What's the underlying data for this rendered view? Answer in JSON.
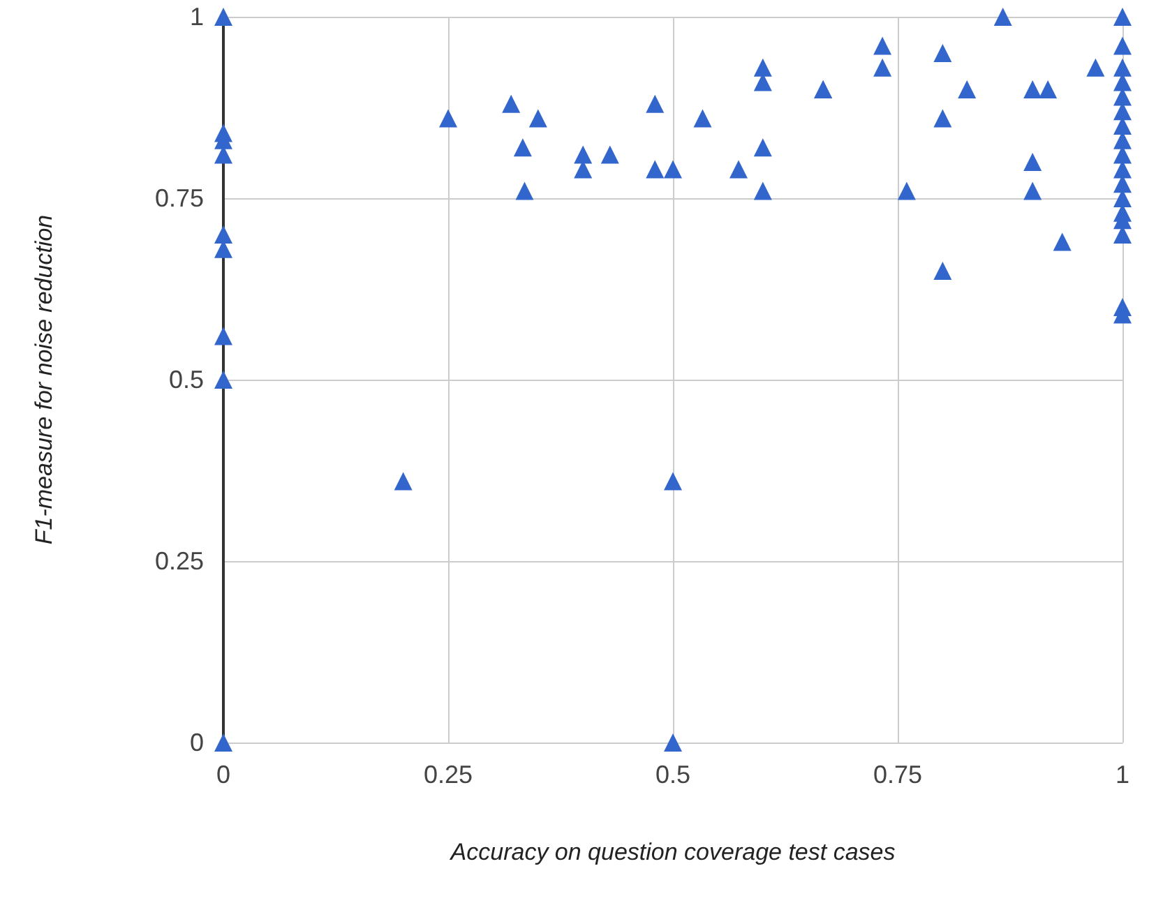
{
  "chart_data": {
    "type": "scatter",
    "xlabel": "Accuracy on question coverage test cases",
    "ylabel": "F1-measure for noise reduction",
    "x": [
      0,
      0,
      0,
      0,
      0,
      0,
      0,
      0,
      0,
      0.2,
      0.25,
      0.32,
      0.333,
      0.35,
      0.335,
      0.4,
      0.4,
      0.43,
      0.48,
      0.48,
      0.5,
      0.5,
      0.5,
      0.533,
      0.573,
      0.6,
      0.6,
      0.6,
      0.6,
      0.667,
      0.667,
      0.733,
      0.733,
      0.76,
      0.8,
      0.8,
      0.8,
      0.827,
      0.867,
      0.9,
      0.917,
      0.9,
      0.9,
      0.933,
      0.97,
      1,
      1,
      1,
      1,
      1,
      1,
      1,
      1,
      1,
      1,
      1,
      1,
      1,
      1,
      1,
      1,
      1
    ],
    "values": [
      1,
      0.84,
      0.83,
      0.81,
      0.7,
      0.68,
      0.56,
      0.5,
      0,
      0.36,
      0.86,
      0.88,
      0.82,
      0.86,
      0.76,
      0.81,
      0.79,
      0.81,
      0.88,
      0.79,
      0.79,
      0.36,
      0,
      0.86,
      0.79,
      0.93,
      0.91,
      0.82,
      0.76,
      0.9,
      0.9,
      0.96,
      0.93,
      0.76,
      0.95,
      0.86,
      0.65,
      0.9,
      1,
      0.9,
      0.9,
      0.8,
      0.76,
      0.69,
      0.93,
      1,
      0.96,
      0.93,
      0.91,
      0.89,
      0.87,
      0.85,
      0.83,
      0.81,
      0.79,
      0.77,
      0.75,
      0.73,
      0.72,
      0.7,
      0.6,
      0.59
    ],
    "color": "#3366cc",
    "marker": "triangle",
    "xlim": [
      0,
      1
    ],
    "xticks": [
      0,
      0.25,
      0.5,
      0.75,
      1
    ],
    "ylim": [
      0,
      1
    ],
    "yticks": [
      0,
      0.25,
      0.5,
      0.75,
      1
    ],
    "grid": true
  }
}
